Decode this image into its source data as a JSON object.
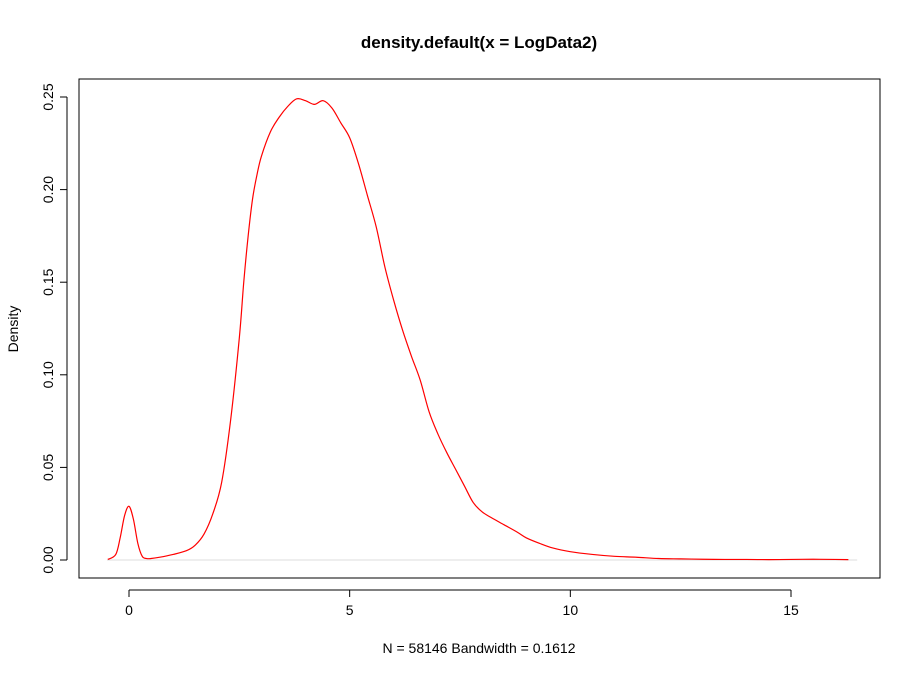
{
  "chart_data": {
    "type": "line",
    "title": "density.default(x = LogData2)",
    "xlabel": "N = 58146   Bandwidth = 0.1612",
    "ylabel": "Density",
    "xlim": [
      -0.5,
      16.5
    ],
    "ylim": [
      0,
      0.25
    ],
    "x_ticks": [
      0,
      5,
      10,
      15
    ],
    "x_tick_labels": [
      "0",
      "5",
      "10",
      "15"
    ],
    "y_ticks": [
      0.0,
      0.05,
      0.1,
      0.15,
      0.2,
      0.25
    ],
    "y_tick_labels": [
      "0.00",
      "0.05",
      "0.10",
      "0.15",
      "0.20",
      "0.25"
    ],
    "grid": false,
    "baseline": 0,
    "baseline_color": "#dddddd",
    "series": [
      {
        "color": "#ff0000",
        "x": [
          -0.48,
          -0.3,
          -0.2,
          -0.1,
          0.0,
          0.1,
          0.2,
          0.3,
          0.4,
          0.5,
          0.7,
          1.0,
          1.3,
          1.5,
          1.7,
          1.9,
          2.1,
          2.3,
          2.5,
          2.6,
          2.7,
          2.8,
          2.9,
          3.0,
          3.2,
          3.4,
          3.6,
          3.8,
          4.0,
          4.2,
          4.4,
          4.6,
          4.8,
          5.0,
          5.2,
          5.4,
          5.6,
          5.8,
          6.0,
          6.2,
          6.4,
          6.6,
          6.8,
          7.0,
          7.2,
          7.4,
          7.6,
          7.8,
          8.0,
          8.2,
          8.5,
          8.8,
          9.0,
          9.3,
          9.6,
          10.0,
          10.5,
          11.0,
          11.5,
          12.0,
          12.5,
          13.0,
          13.5,
          14.0,
          14.5,
          15.0,
          15.5,
          16.0,
          16.3
        ],
        "y": [
          0.0003,
          0.003,
          0.012,
          0.024,
          0.029,
          0.022,
          0.009,
          0.002,
          0.0008,
          0.0008,
          0.0015,
          0.003,
          0.005,
          0.008,
          0.014,
          0.025,
          0.042,
          0.075,
          0.12,
          0.15,
          0.175,
          0.195,
          0.208,
          0.218,
          0.231,
          0.239,
          0.245,
          0.249,
          0.248,
          0.246,
          0.248,
          0.244,
          0.236,
          0.228,
          0.214,
          0.197,
          0.18,
          0.158,
          0.14,
          0.124,
          0.11,
          0.097,
          0.08,
          0.068,
          0.058,
          0.049,
          0.04,
          0.031,
          0.026,
          0.023,
          0.019,
          0.015,
          0.012,
          0.009,
          0.0065,
          0.0045,
          0.003,
          0.002,
          0.0015,
          0.0008,
          0.0006,
          0.0004,
          0.0003,
          0.0003,
          0.0002,
          0.0003,
          0.0004,
          0.0003,
          0.0002
        ]
      }
    ]
  }
}
